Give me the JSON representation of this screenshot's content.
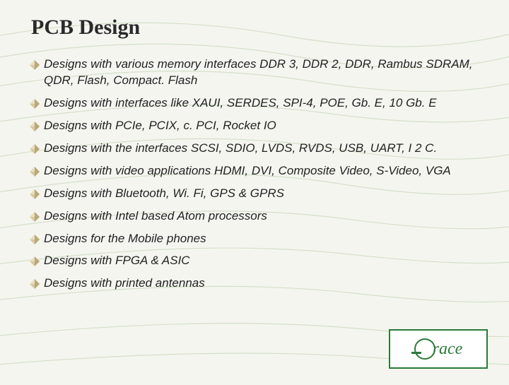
{
  "title": "PCB Design",
  "bullet_color_a": "#b9a978",
  "bullet_color_b": "#d6c9a0",
  "bg_line_color": "#c5d8b5",
  "logo_text": "race",
  "logo_border": "#2a7a3a",
  "bullets": [
    "Designs with various memory interfaces DDR 3, DDR 2, DDR, Rambus SDRAM, QDR, Flash, Compact. Flash",
    "Designs with interfaces like XAUI, SERDES, SPI-4, POE, Gb. E, 10 Gb. E",
    "Designs with PCIe, PCIX, c. PCI, Rocket IO",
    "Designs with the interfaces SCSI, SDIO, LVDS, RVDS, USB, UART, I 2 C.",
    "Designs with video applications HDMI, DVI, Composite Video, S-Video, VGA",
    "Designs with Bluetooth, Wi. Fi, GPS & GPRS",
    "Designs with Intel based Atom processors",
    "Designs for the Mobile phones",
    "Designs with FPGA & ASIC",
    "Designs with printed antennas"
  ]
}
